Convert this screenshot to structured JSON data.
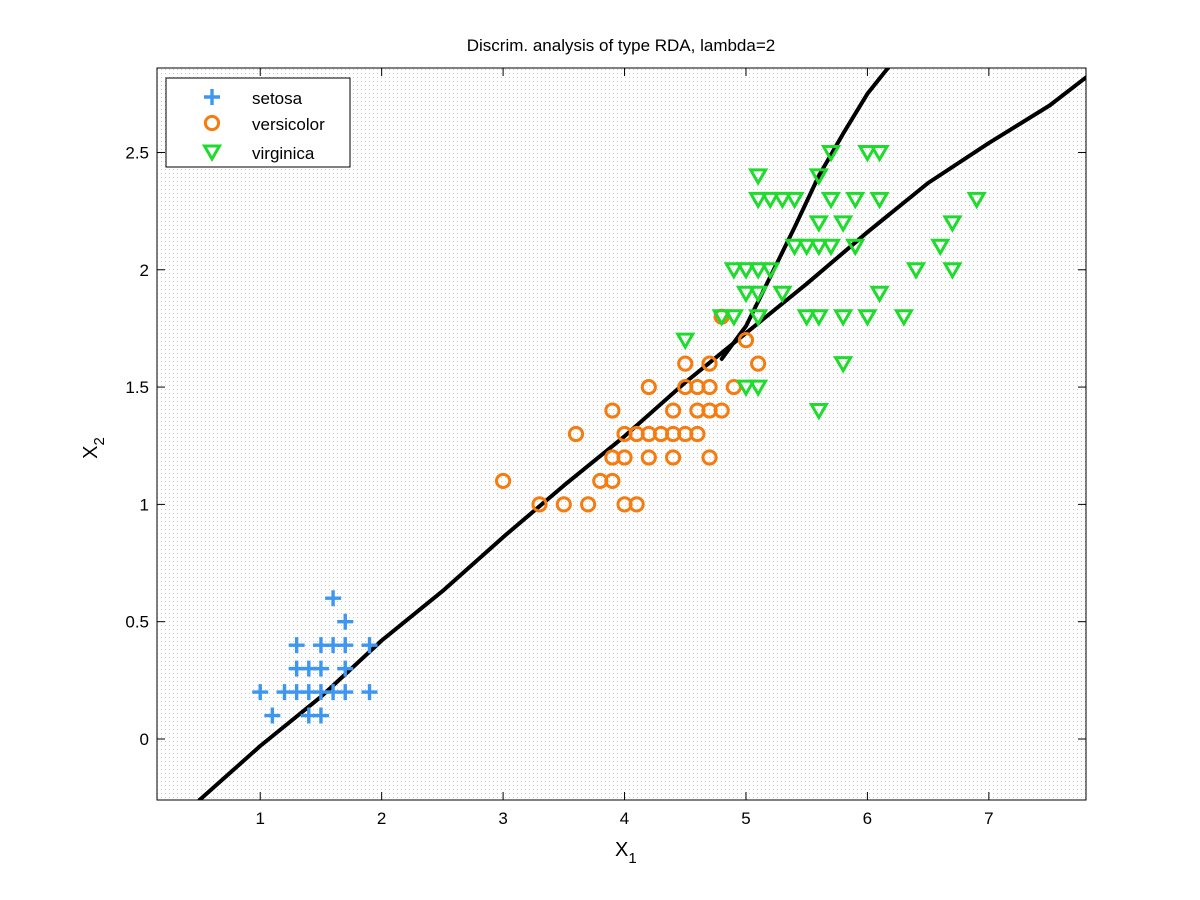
{
  "chart_data": {
    "type": "scatter",
    "title": "Discrim. analysis of type RDA, lambda=2",
    "xlabel": "X",
    "xlabel_sub": "1",
    "ylabel": "X",
    "ylabel_sub": "2",
    "xlim": [
      0.15,
      7.8
    ],
    "ylim": [
      -0.26,
      2.86
    ],
    "xticks": [
      1,
      2,
      3,
      4,
      5,
      6,
      7
    ],
    "yticks": [
      0,
      0.5,
      1,
      1.5,
      2,
      2.5
    ],
    "xtick_labels": [
      "1",
      "2",
      "3",
      "4",
      "5",
      "6",
      "7"
    ],
    "ytick_labels": [
      "0",
      "0.5",
      "1",
      "1.5",
      "2",
      "2.5"
    ],
    "legend_position": "top-left",
    "series": [
      {
        "name": "setosa",
        "marker": "plus",
        "color": "#3d97f0",
        "points": [
          [
            1.6,
            0.6
          ],
          [
            1.7,
            0.5
          ],
          [
            1.3,
            0.4
          ],
          [
            1.5,
            0.4
          ],
          [
            1.6,
            0.4
          ],
          [
            1.7,
            0.4
          ],
          [
            1.9,
            0.4
          ],
          [
            1.3,
            0.3
          ],
          [
            1.4,
            0.3
          ],
          [
            1.5,
            0.3
          ],
          [
            1.7,
            0.3
          ],
          [
            1.0,
            0.2
          ],
          [
            1.2,
            0.2
          ],
          [
            1.3,
            0.2
          ],
          [
            1.4,
            0.2
          ],
          [
            1.5,
            0.2
          ],
          [
            1.6,
            0.2
          ],
          [
            1.7,
            0.2
          ],
          [
            1.9,
            0.2
          ],
          [
            1.1,
            0.1
          ],
          [
            1.4,
            0.1
          ],
          [
            1.5,
            0.1
          ]
        ]
      },
      {
        "name": "versicolor",
        "marker": "circle",
        "color": "#f57c10",
        "points": [
          [
            5.0,
            1.7
          ],
          [
            4.5,
            1.6
          ],
          [
            4.7,
            1.6
          ],
          [
            5.1,
            1.6
          ],
          [
            4.2,
            1.5
          ],
          [
            4.5,
            1.5
          ],
          [
            4.6,
            1.5
          ],
          [
            4.7,
            1.5
          ],
          [
            4.9,
            1.5
          ],
          [
            3.9,
            1.4
          ],
          [
            4.4,
            1.4
          ],
          [
            4.6,
            1.4
          ],
          [
            4.7,
            1.4
          ],
          [
            4.8,
            1.4
          ],
          [
            3.6,
            1.3
          ],
          [
            4.0,
            1.3
          ],
          [
            4.1,
            1.3
          ],
          [
            4.2,
            1.3
          ],
          [
            4.3,
            1.3
          ],
          [
            4.4,
            1.3
          ],
          [
            4.5,
            1.3
          ],
          [
            4.6,
            1.3
          ],
          [
            3.9,
            1.2
          ],
          [
            4.0,
            1.2
          ],
          [
            4.2,
            1.2
          ],
          [
            4.4,
            1.2
          ],
          [
            4.7,
            1.2
          ],
          [
            3.0,
            1.1
          ],
          [
            3.8,
            1.1
          ],
          [
            3.9,
            1.1
          ],
          [
            3.3,
            1.0
          ],
          [
            3.5,
            1.0
          ],
          [
            3.7,
            1.0
          ],
          [
            4.0,
            1.0
          ],
          [
            4.1,
            1.0
          ],
          [
            4.8,
            1.8
          ]
        ]
      },
      {
        "name": "virginica",
        "marker": "triangle-down",
        "color": "#1edc2c",
        "points": [
          [
            5.7,
            2.5
          ],
          [
            6.0,
            2.5
          ],
          [
            6.1,
            2.5
          ],
          [
            5.1,
            2.4
          ],
          [
            5.6,
            2.4
          ],
          [
            5.1,
            2.3
          ],
          [
            5.2,
            2.3
          ],
          [
            5.3,
            2.3
          ],
          [
            5.4,
            2.3
          ],
          [
            5.7,
            2.3
          ],
          [
            5.9,
            2.3
          ],
          [
            6.1,
            2.3
          ],
          [
            6.9,
            2.3
          ],
          [
            5.6,
            2.2
          ],
          [
            5.8,
            2.2
          ],
          [
            6.7,
            2.2
          ],
          [
            5.4,
            2.1
          ],
          [
            5.5,
            2.1
          ],
          [
            5.6,
            2.1
          ],
          [
            5.7,
            2.1
          ],
          [
            5.9,
            2.1
          ],
          [
            6.6,
            2.1
          ],
          [
            4.9,
            2.0
          ],
          [
            5.0,
            2.0
          ],
          [
            5.1,
            2.0
          ],
          [
            5.2,
            2.0
          ],
          [
            6.4,
            2.0
          ],
          [
            6.7,
            2.0
          ],
          [
            5.0,
            1.9
          ],
          [
            5.1,
            1.9
          ],
          [
            5.3,
            1.9
          ],
          [
            6.1,
            1.9
          ],
          [
            4.8,
            1.8
          ],
          [
            4.9,
            1.8
          ],
          [
            5.1,
            1.8
          ],
          [
            5.5,
            1.8
          ],
          [
            5.6,
            1.8
          ],
          [
            5.8,
            1.8
          ],
          [
            6.0,
            1.8
          ],
          [
            6.3,
            1.8
          ],
          [
            4.5,
            1.7
          ],
          [
            5.8,
            1.6
          ],
          [
            5.0,
            1.5
          ],
          [
            5.1,
            1.5
          ],
          [
            5.6,
            1.4
          ]
        ]
      }
    ],
    "boundaries": [
      {
        "name": "setosa/versicolor boundary",
        "color": "#000000",
        "points": [
          [
            0.5,
            -0.26
          ],
          [
            1.0,
            -0.03
          ],
          [
            1.5,
            0.18
          ],
          [
            2.0,
            0.42
          ],
          [
            2.5,
            0.63
          ],
          [
            3.0,
            0.86
          ],
          [
            3.5,
            1.08
          ],
          [
            4.0,
            1.29
          ],
          [
            4.5,
            1.52
          ],
          [
            5.0,
            1.73
          ],
          [
            5.5,
            1.94
          ],
          [
            6.0,
            2.16
          ],
          [
            6.5,
            2.37
          ],
          [
            7.0,
            2.54
          ],
          [
            7.5,
            2.7
          ],
          [
            7.8,
            2.82
          ]
        ]
      },
      {
        "name": "versicolor/virginica boundary",
        "color": "#000000",
        "points": [
          [
            4.8,
            1.62
          ],
          [
            5.0,
            1.76
          ],
          [
            5.2,
            1.97
          ],
          [
            5.4,
            2.18
          ],
          [
            5.6,
            2.4
          ],
          [
            5.8,
            2.58
          ],
          [
            6.0,
            2.75
          ],
          [
            6.2,
            2.88
          ]
        ]
      }
    ]
  }
}
